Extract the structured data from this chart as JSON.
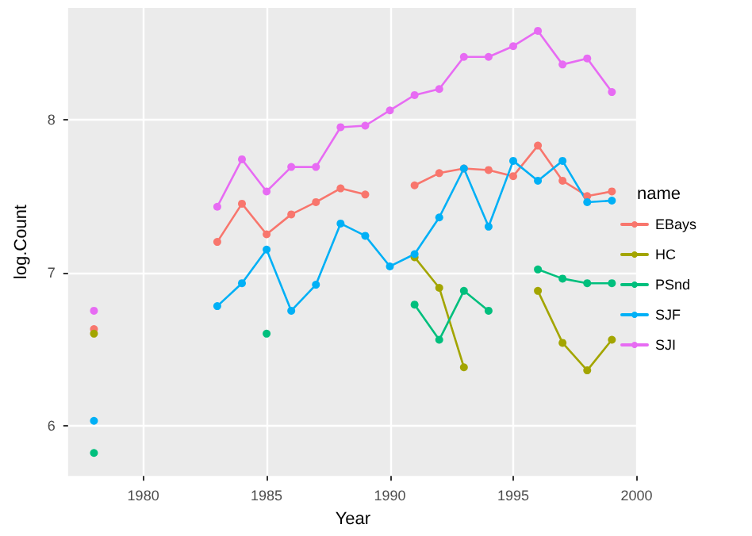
{
  "chart_data": {
    "type": "line",
    "xlabel": "Year",
    "ylabel": "log.Count",
    "legend_title": "name",
    "legend": "right",
    "grid": true,
    "marker": "circle",
    "line_style": "solid",
    "x": [
      1978,
      1979,
      1980,
      1981,
      1982,
      1983,
      1984,
      1985,
      1986,
      1987,
      1988,
      1989,
      1990,
      1991,
      1992,
      1993,
      1994,
      1995,
      1996,
      1997,
      1998,
      1999
    ],
    "xlim": [
      1976.95,
      2000.05
    ],
    "xticks": [
      1980,
      1985,
      1990,
      1995,
      2000
    ],
    "ylim": [
      5.67,
      8.73
    ],
    "yticks": [
      6,
      7,
      8
    ],
    "series": [
      {
        "name": "EBays",
        "color": "#f8766d",
        "values": [
          6.63,
          null,
          null,
          null,
          null,
          7.2,
          7.45,
          7.25,
          7.38,
          7.46,
          7.55,
          7.51,
          null,
          7.57,
          7.65,
          7.68,
          7.67,
          7.63,
          7.83,
          7.6,
          7.5,
          7.53
        ]
      },
      {
        "name": "HC",
        "color": "#a3a500",
        "values": [
          6.6,
          null,
          null,
          null,
          null,
          null,
          null,
          null,
          null,
          null,
          null,
          null,
          null,
          7.1,
          6.9,
          6.38,
          null,
          null,
          6.88,
          6.54,
          6.36,
          6.56
        ]
      },
      {
        "name": "PSnd",
        "color": "#00bf7d",
        "values": [
          5.82,
          null,
          null,
          null,
          null,
          null,
          null,
          6.6,
          null,
          null,
          null,
          null,
          null,
          6.79,
          6.56,
          6.88,
          6.75,
          null,
          7.02,
          6.96,
          6.93,
          6.93
        ]
      },
      {
        "name": "SJF",
        "color": "#00b0f6",
        "values": [
          6.03,
          null,
          null,
          null,
          null,
          6.78,
          6.93,
          7.15,
          6.75,
          6.92,
          7.32,
          7.24,
          7.04,
          7.12,
          7.36,
          7.68,
          7.3,
          7.73,
          7.6,
          7.73,
          7.46,
          7.47
        ]
      },
      {
        "name": "SJI",
        "color": "#e76bf3",
        "values": [
          6.75,
          null,
          null,
          null,
          null,
          7.43,
          7.74,
          7.53,
          7.69,
          7.69,
          7.95,
          7.96,
          8.06,
          8.16,
          8.2,
          8.41,
          8.41,
          8.48,
          8.58,
          8.36,
          8.4,
          8.18
        ]
      }
    ]
  }
}
